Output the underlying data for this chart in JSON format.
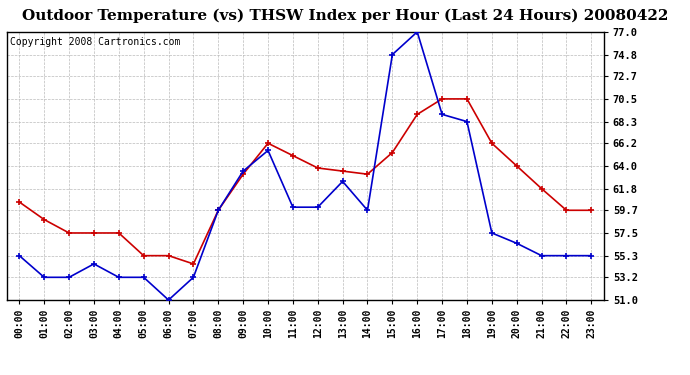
{
  "title": "Outdoor Temperature (vs) THSW Index per Hour (Last 24 Hours) 20080422",
  "copyright": "Copyright 2008 Cartronics.com",
  "hours": [
    "00:00",
    "01:00",
    "02:00",
    "03:00",
    "04:00",
    "05:00",
    "06:00",
    "07:00",
    "08:00",
    "09:00",
    "10:00",
    "11:00",
    "12:00",
    "13:00",
    "14:00",
    "15:00",
    "16:00",
    "17:00",
    "18:00",
    "19:00",
    "20:00",
    "21:00",
    "22:00",
    "23:00"
  ],
  "temp": [
    60.5,
    58.8,
    57.5,
    57.5,
    57.5,
    55.3,
    55.3,
    54.5,
    59.7,
    63.2,
    66.2,
    65.0,
    63.8,
    63.5,
    63.2,
    65.3,
    69.0,
    70.5,
    70.5,
    66.2,
    64.0,
    61.8,
    59.7,
    59.7
  ],
  "thsw": [
    55.3,
    53.2,
    53.2,
    54.5,
    53.2,
    53.2,
    51.0,
    53.2,
    59.7,
    63.5,
    65.5,
    60.0,
    60.0,
    62.5,
    59.7,
    74.8,
    77.0,
    69.0,
    68.3,
    57.5,
    56.5,
    55.3,
    55.3,
    55.3
  ],
  "y_ticks": [
    51.0,
    53.2,
    55.3,
    57.5,
    59.7,
    61.8,
    64.0,
    66.2,
    68.3,
    70.5,
    72.7,
    74.8,
    77.0
  ],
  "y_min": 51.0,
  "y_max": 77.0,
  "temp_color": "#cc0000",
  "thsw_color": "#0000cc",
  "bg_color": "#ffffff",
  "grid_color": "#bbbbbb",
  "title_fontsize": 11,
  "copyright_fontsize": 7
}
